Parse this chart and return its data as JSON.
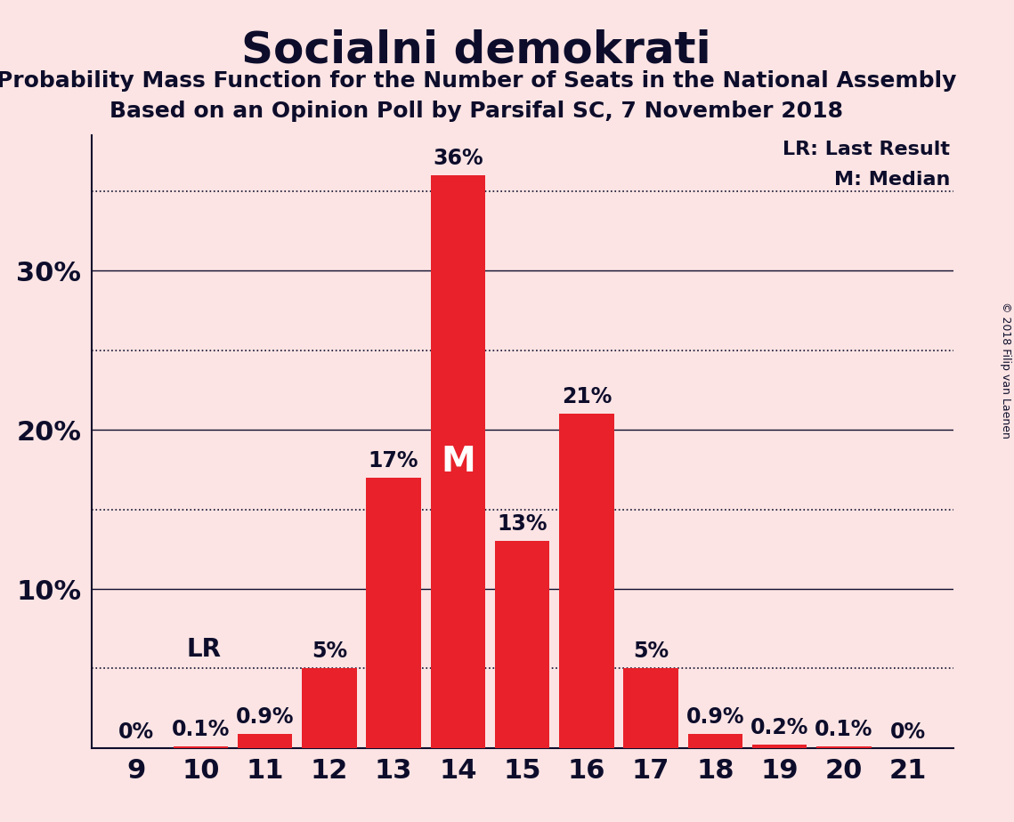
{
  "title": "Socialni demokrati",
  "subtitle1": "Probability Mass Function for the Number of Seats in the National Assembly",
  "subtitle2": "Based on an Opinion Poll by Parsifal SC, 7 November 2018",
  "copyright": "© 2018 Filip van Laenen",
  "seats": [
    9,
    10,
    11,
    12,
    13,
    14,
    15,
    16,
    17,
    18,
    19,
    20,
    21
  ],
  "values": [
    0.0,
    0.1,
    0.9,
    5.0,
    17.0,
    36.0,
    13.0,
    21.0,
    5.0,
    0.9,
    0.2,
    0.1,
    0.0
  ],
  "bar_color": "#e8212a",
  "background_color": "#fce4e4",
  "median_seat": 14,
  "lr_seat": 10,
  "lr_value": 5.0,
  "solid_grid_ticks": [
    10,
    20,
    30
  ],
  "dotted_grid_ticks": [
    5,
    15,
    25,
    35
  ],
  "ytick_labels": [
    10,
    20,
    30
  ],
  "ylim": [
    0,
    38.5
  ],
  "xlim_min": 8.3,
  "xlim_max": 21.7,
  "legend_lr": "LR: Last Result",
  "legend_m": "M: Median",
  "text_color": "#0d0d2b",
  "bar_labels": [
    "0%",
    "0.1%",
    "0.9%",
    "5%",
    "17%",
    "36%",
    "13%",
    "21%",
    "5%",
    "0.9%",
    "0.2%",
    "0.1%",
    "0%"
  ],
  "title_fontsize": 36,
  "subtitle_fontsize": 18,
  "tick_fontsize": 22,
  "bar_label_fontsize": 17,
  "legend_fontsize": 16,
  "lr_fontsize": 20,
  "m_fontsize": 28
}
